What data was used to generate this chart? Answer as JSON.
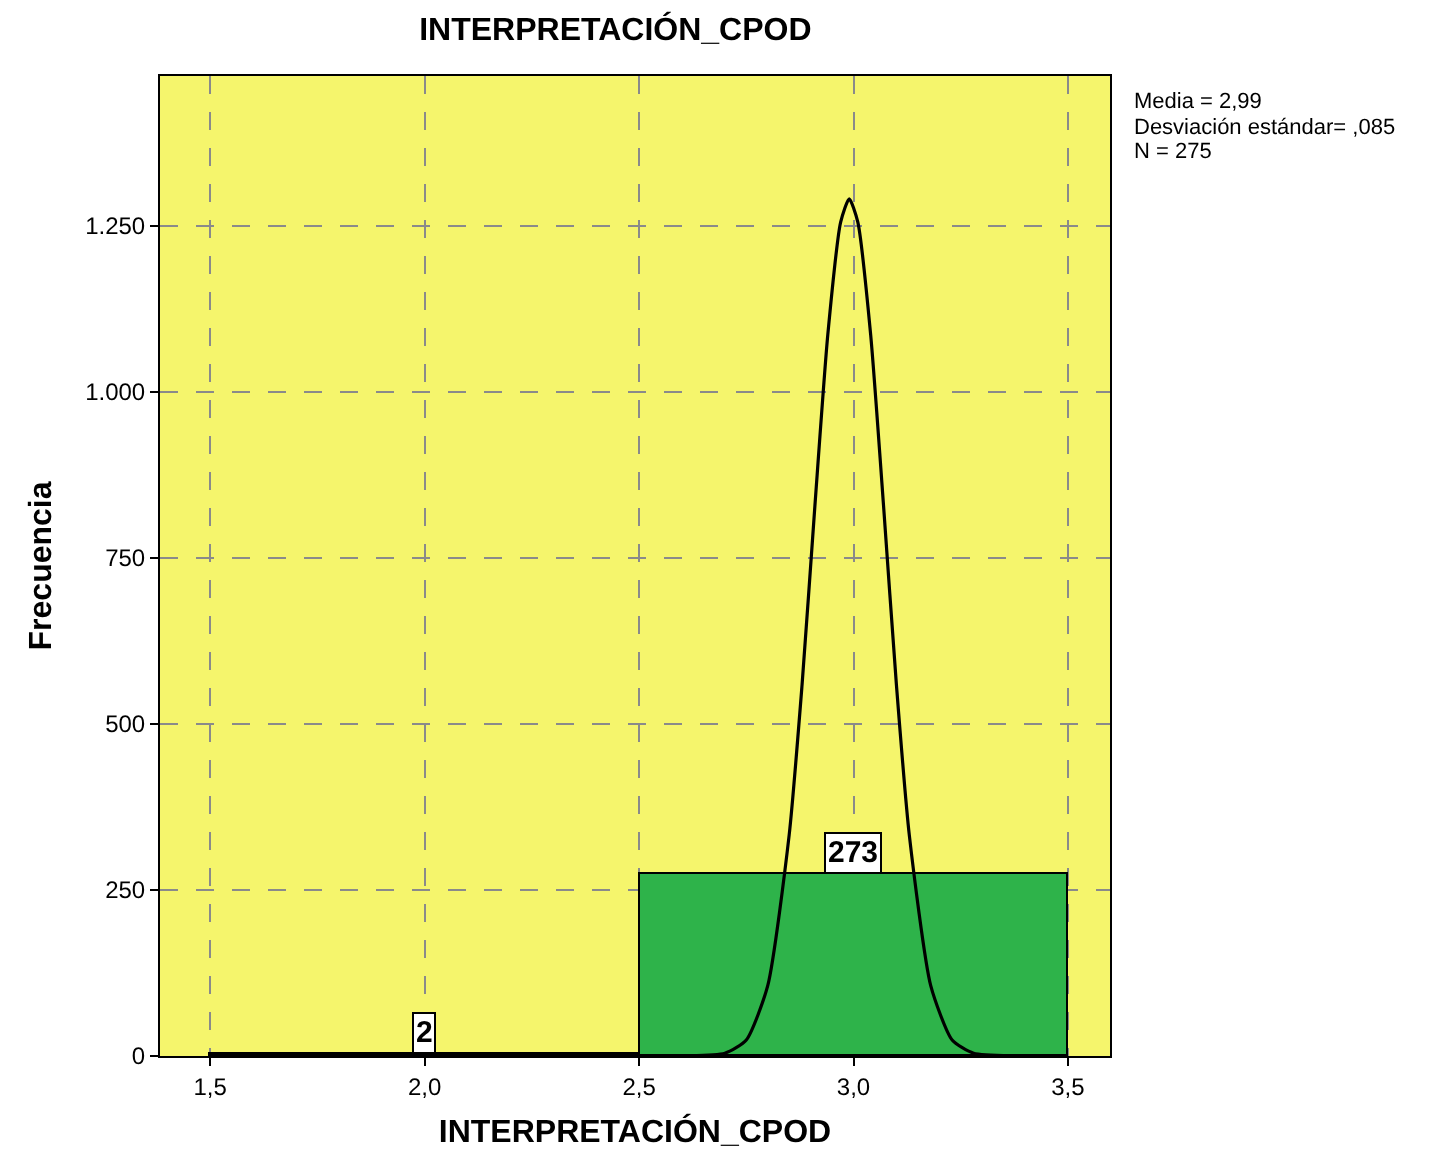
{
  "chart_data": {
    "type": "histogram",
    "title": "INTERPRETACIÓN_CPOD",
    "xlabel": "INTERPRETACIÓN_CPOD",
    "ylabel": "Frecuencia",
    "bins": [
      1.5,
      2.5,
      3.5
    ],
    "series": [
      {
        "color": "#2eb34a",
        "values": [
          2,
          273
        ],
        "value_labels": [
          "2",
          "273"
        ]
      },
      {
        "type": "line",
        "color": "#000000",
        "x": [
          1.5,
          2.6,
          2.7,
          2.75,
          2.8,
          2.85,
          2.88,
          2.91,
          2.94,
          2.97,
          2.99,
          3.01,
          3.04,
          3.07,
          3.1,
          3.13,
          3.18,
          3.23,
          3.28,
          3.38,
          3.5
        ],
        "values": [
          0,
          0,
          4,
          24,
          106,
          333,
          559,
          829,
          1086,
          1256,
          1291,
          1256,
          1086,
          829,
          559,
          333,
          106,
          24,
          4,
          0,
          0
        ]
      }
    ],
    "xlim": [
      1.383,
      3.598
    ],
    "ylim": [
      0,
      1476
    ],
    "xticks": [
      {
        "value": 1.5,
        "label": "1,5"
      },
      {
        "value": 2.0,
        "label": "2,0"
      },
      {
        "value": 2.5,
        "label": "2,5"
      },
      {
        "value": 3.0,
        "label": "3,0"
      },
      {
        "value": 3.5,
        "label": "3,5"
      }
    ],
    "yticks": [
      0,
      250,
      500,
      750,
      {
        "value": 1000,
        "label": "1.000"
      },
      {
        "value": 1250,
        "label": "1.250"
      }
    ],
    "annotations": [
      "Media = 2,99",
      "Desviación estándar= ,085",
      "N = 275"
    ],
    "grid": true,
    "marker": "none",
    "line_style": "solid"
  }
}
